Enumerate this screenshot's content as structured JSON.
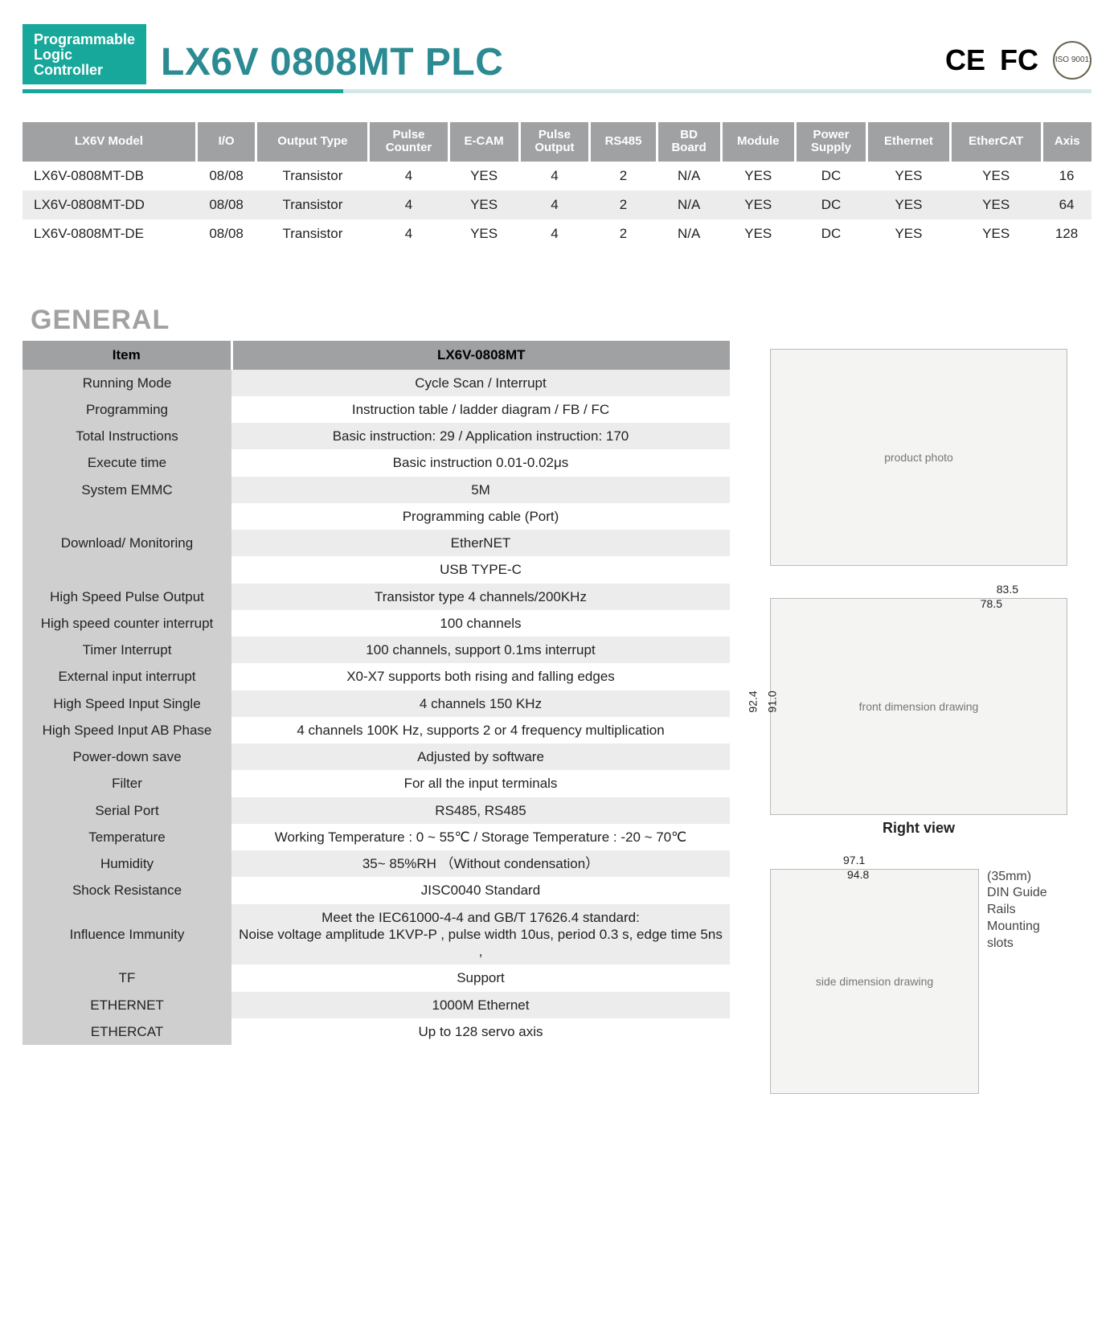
{
  "header": {
    "tag_line1": "Programmable",
    "tag_line2": "Logic",
    "tag_line3": "Controller",
    "title": "LX6V 0808MT PLC",
    "cert_ce": "CE",
    "cert_fcc": "FC",
    "cert_iso": "ISO 9001"
  },
  "models": {
    "columns": [
      "LX6V Model",
      "I/O",
      "Output Type",
      "Pulse Counter",
      "E-CAM",
      "Pulse Output",
      "RS485",
      "BD Board",
      "Module",
      "Power Supply",
      "Ethernet",
      "EtherCAT",
      "Axis"
    ],
    "rows": [
      [
        "LX6V-0808MT-DB",
        "08/08",
        "Transistor",
        "4",
        "YES",
        "4",
        "2",
        "N/A",
        "YES",
        "DC",
        "YES",
        "YES",
        "16"
      ],
      [
        "LX6V-0808MT-DD",
        "08/08",
        "Transistor",
        "4",
        "YES",
        "4",
        "2",
        "N/A",
        "YES",
        "DC",
        "YES",
        "YES",
        "64"
      ],
      [
        "LX6V-0808MT-DE",
        "08/08",
        "Transistor",
        "4",
        "YES",
        "4",
        "2",
        "N/A",
        "YES",
        "DC",
        "YES",
        "YES",
        "128"
      ]
    ]
  },
  "section_general_title": "GENERAL",
  "general": {
    "header_item": "Item",
    "header_model": "LX6V-0808MT",
    "rows": [
      {
        "label": "Running Mode",
        "value": "Cycle Scan / Interrupt"
      },
      {
        "label": "Programming",
        "value": "Instruction table / ladder diagram / FB / FC"
      },
      {
        "label": "Total Instructions",
        "value": "Basic instruction: 29 / Application instruction: 170"
      },
      {
        "label": "Execute time",
        "value": "Basic instruction 0.01-0.02μs"
      },
      {
        "label": "System EMMC",
        "value": "5M"
      },
      {
        "label": "Download/ Monitoring",
        "value": "Programming cable (Port)",
        "rowspan": 3
      },
      {
        "label": "",
        "value": "EtherNET",
        "merged": true
      },
      {
        "label": "",
        "value": "USB TYPE-C",
        "merged": true
      },
      {
        "label": "High Speed Pulse Output",
        "value": "Transistor type 4 channels/200KHz"
      },
      {
        "label": "High speed counter interrupt",
        "value": "100 channels"
      },
      {
        "label": "Timer Interrupt",
        "value": "100 channels, support 0.1ms interrupt"
      },
      {
        "label": "External input interrupt",
        "value": "X0-X7 supports both rising and falling edges"
      },
      {
        "label": "High Speed Input Single",
        "value": "4 channels 150 KHz"
      },
      {
        "label": "High Speed Input AB Phase",
        "value": "4 channels 100K Hz, supports 2 or 4 frequency multiplication"
      },
      {
        "label": "Power-down save",
        "value": "Adjusted by software"
      },
      {
        "label": "Filter",
        "value": "For all the input terminals"
      },
      {
        "label": "Serial Port",
        "value": "RS485, RS485"
      },
      {
        "label": "Temperature",
        "value": "Working Temperature :  0 ~ 55℃ / Storage Temperature :  -20 ~ 70℃"
      },
      {
        "label": "Humidity",
        "value": "35~ 85%RH （Without condensation）"
      },
      {
        "label": "Shock Resistance",
        "value": "JISC0040 Standard"
      },
      {
        "label": "Influence Immunity",
        "value": "Meet the IEC61000-4-4 and GB/T 17626.4 standard:\nNoise voltage amplitude 1KVP-P , pulse width 10us, period 0.3 s, edge time 5ns ,"
      },
      {
        "label": "TF",
        "value": "Support"
      },
      {
        "label": "ETHERNET",
        "value": "1000M Ethernet"
      },
      {
        "label": "ETHERCAT",
        "value": "Up to 128 servo axis"
      }
    ]
  },
  "drawings": {
    "top_dim_outer": "83.5",
    "top_dim_inner": "78.5",
    "top_dim_h_outer": "92.4",
    "top_dim_h_inner": "91.0",
    "right_caption": "Right view",
    "side_dim_outer": "97.1",
    "side_dim_inner": "94.8",
    "side_note1": "(35mm)",
    "side_note2": "DIN Guide Rails",
    "side_note3": "Mounting slots"
  },
  "placeholders": {
    "photo": "product photo",
    "drawing_front": "front dimension drawing",
    "drawing_side": "side dimension drawing"
  }
}
